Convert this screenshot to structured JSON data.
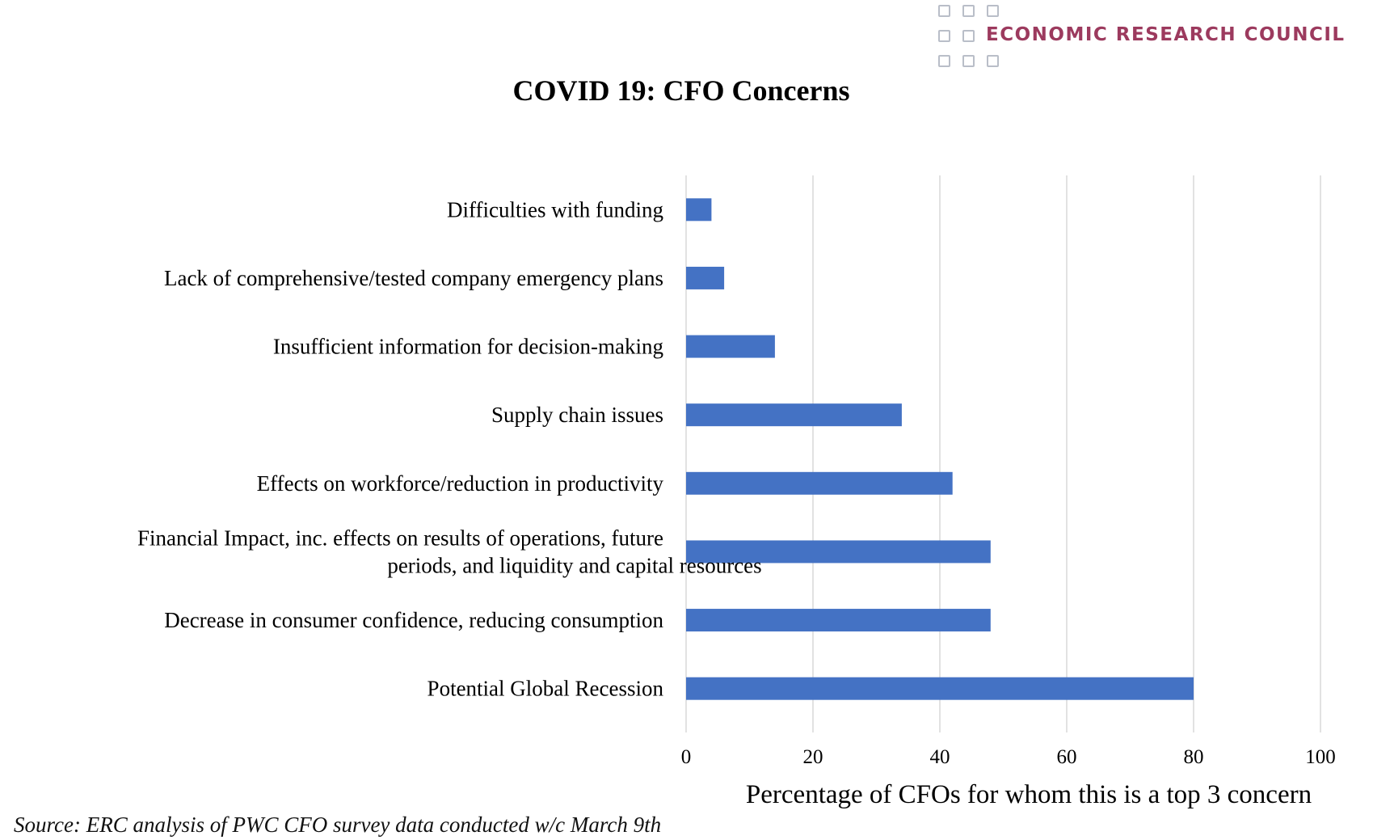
{
  "logo": {
    "text": "ECONOMIC RESEARCH COUNCIL"
  },
  "source": "Source: ERC analysis of PWC CFO survey data conducted w/c March 9th",
  "chart_data": {
    "type": "bar",
    "orientation": "horizontal",
    "title": "COVID 19: CFO Concerns",
    "xlabel": "Percentage of CFOs for whom this is a top 3 concern",
    "ylabel": "",
    "xlim": [
      0,
      100
    ],
    "xticks": [
      0,
      20,
      40,
      60,
      80,
      100
    ],
    "grid": true,
    "bar_color": "#4472c4",
    "categories": [
      "Difficulties with funding",
      "Lack of comprehensive/tested company emergency plans",
      "Insufficient information for decision-making",
      "Supply chain issues",
      "Effects on workforce/reduction in productivity",
      "Financial Impact, inc. effects on results of operations, future periods, and liquidity and capital resources",
      "Decrease in consumer confidence, reducing consumption",
      "Potential Global Recession"
    ],
    "category_lines": [
      [
        "Difficulties with funding"
      ],
      [
        "Lack of comprehensive/tested company emergency plans"
      ],
      [
        "Insufficient information for decision-making"
      ],
      [
        "Supply chain issues"
      ],
      [
        "Effects on workforce/reduction in productivity"
      ],
      [
        "Financial Impact, inc. effects on results of operations, future",
        "periods, and liquidity and capital resources"
      ],
      [
        "Decrease in consumer confidence, reducing consumption"
      ],
      [
        "Potential Global Recession"
      ]
    ],
    "values": [
      4,
      6,
      14,
      34,
      42,
      48,
      48,
      80
    ]
  }
}
